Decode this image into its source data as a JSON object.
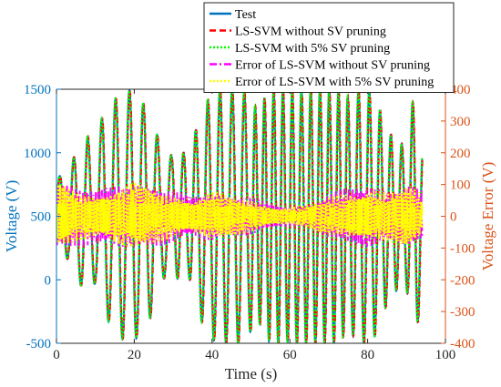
{
  "chart_data": {
    "type": "line",
    "xlabel": "Time (s)",
    "ylabel_left": "Voltage (V)",
    "ylabel_right": "Voltage Error (V)",
    "xlim": [
      0,
      100
    ],
    "ylim_left": [
      -500,
      1500
    ],
    "ylim_right": [
      -400,
      400
    ],
    "x_ticks": [
      "0",
      "20",
      "40",
      "60",
      "80",
      "100"
    ],
    "y_ticks_left": [
      "-500",
      "0",
      "500",
      "1000",
      "1500"
    ],
    "y_ticks_right": [
      "-400",
      "-300",
      "-200",
      "-100",
      "0",
      "100",
      "200",
      "300",
      "400"
    ],
    "grid": false,
    "legend_position": "top-right",
    "series": [
      {
        "name": "Test",
        "axis": "left",
        "color": "#0072BD",
        "style": "solid"
      },
      {
        "name": "LS-SVM without SV pruning",
        "axis": "left",
        "color": "#FF0000",
        "style": "dashed"
      },
      {
        "name": "LS-SVM with 5% SV pruning",
        "axis": "left",
        "color": "#00FF00",
        "style": "dotted"
      },
      {
        "name": "Error of LS-SVM without SV pruning",
        "axis": "right",
        "color": "#FF00FF",
        "style": "dashdot"
      },
      {
        "name": "Error of LS-SVM with 5% SV pruning",
        "axis": "right",
        "color": "#FFFF00",
        "style": "dotted"
      }
    ],
    "voltage_trace": {
      "time": [
        0,
        2,
        4,
        6,
        8,
        10,
        12,
        14,
        16,
        18,
        20,
        22,
        24,
        26,
        28,
        30,
        32,
        34,
        36,
        38,
        40,
        42,
        44,
        46,
        48,
        50,
        52,
        54,
        56,
        58,
        60,
        62,
        64,
        66,
        68,
        70,
        72,
        74,
        76,
        78,
        80,
        82,
        84,
        86,
        88,
        90,
        92,
        94
      ],
      "upper_envelope": [
        860,
        760,
        960,
        980,
        1130,
        1000,
        1330,
        1320,
        1500,
        1490,
        1490,
        1400,
        1310,
        1130,
        960,
        990,
        1010,
        980,
        1200,
        1380,
        1460,
        1500,
        1500,
        1500,
        1490,
        1400,
        1330,
        1470,
        1500,
        1500,
        1480,
        1500,
        1500,
        1500,
        1500,
        1500,
        1500,
        1450,
        1430,
        1500,
        1500,
        1450,
        1250,
        1140,
        1070,
        1070,
        1490,
        1100
      ],
      "lower_envelope": [
        160,
        240,
        30,
        -30,
        -140,
        -20,
        -330,
        -330,
        -470,
        -460,
        -480,
        -400,
        -310,
        -130,
        40,
        20,
        0,
        30,
        -210,
        -390,
        -470,
        -500,
        -500,
        -500,
        -500,
        -400,
        -330,
        -470,
        -500,
        -500,
        -480,
        -500,
        -500,
        -500,
        -500,
        -500,
        -500,
        -440,
        -430,
        -500,
        -500,
        -440,
        -250,
        -140,
        -60,
        -70,
        -480,
        -150
      ]
    },
    "error_band": {
      "time": [
        0,
        5,
        10,
        15,
        20,
        25,
        30,
        35,
        40,
        45,
        50,
        55,
        60,
        65,
        70,
        75,
        80,
        85,
        90,
        94
      ],
      "amplitude": [
        95,
        70,
        65,
        80,
        95,
        75,
        60,
        50,
        70,
        55,
        45,
        30,
        25,
        35,
        55,
        65,
        80,
        70,
        85,
        60
      ]
    }
  }
}
